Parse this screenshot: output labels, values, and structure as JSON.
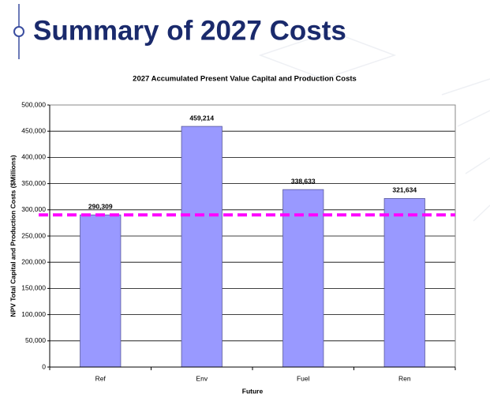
{
  "header": {
    "title": "Summary of 2027 Costs"
  },
  "chart_data": {
    "type": "bar",
    "title": "2027 Accumulated Present Value Capital and Production Costs",
    "x_label": "Future",
    "y_label": "NPV Total Capital and Production Costs ($Millions)",
    "categories": [
      "Ref",
      "Env",
      "Fuel",
      "Ren"
    ],
    "values": [
      290309,
      459214,
      338633,
      321634
    ],
    "value_labels": [
      "290,309",
      "459,214",
      "338,633",
      "321,634"
    ],
    "color": "#9999ff",
    "reference_line": {
      "value": 290309,
      "color": "#ff00ff"
    },
    "ylim": [
      0,
      500000
    ],
    "yticks": [
      0,
      {
        "value": 50000,
        "label": "50,000"
      },
      {
        "value": 100000,
        "label": "100,000"
      },
      {
        "value": 150000,
        "label": "150,000"
      },
      {
        "value": 200000,
        "label": "200,000"
      },
      {
        "value": 250000,
        "label": "250,000"
      },
      {
        "value": 300000,
        "label": "300,000"
      },
      {
        "value": 350000,
        "label": "350,000"
      },
      {
        "value": 400000,
        "label": "400,000"
      },
      {
        "value": 450000,
        "label": "450,000"
      },
      {
        "value": 500000,
        "label": "500,000"
      }
    ],
    "grid": true
  }
}
